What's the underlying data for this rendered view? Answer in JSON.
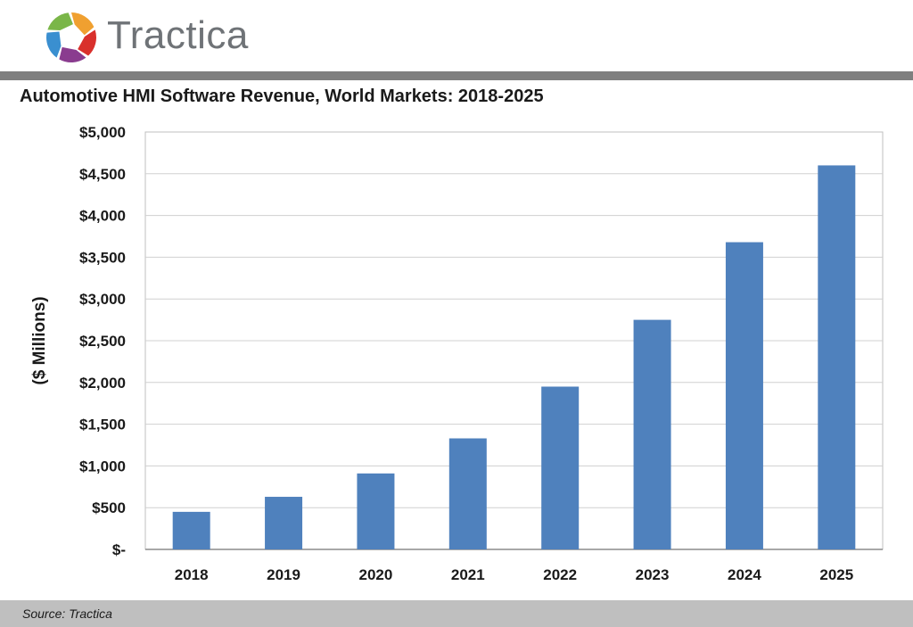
{
  "brand": {
    "name": "Tractica",
    "logo_colors": [
      "#f0a030",
      "#d9302c",
      "#8a3c8f",
      "#3a8fd0",
      "#7ab648"
    ]
  },
  "footer": {
    "source": "Source: Tractica"
  },
  "chart_data": {
    "type": "bar",
    "title": "Automotive HMI Software Revenue, World Markets: 2018-2025",
    "ylabel": "($ Millions)",
    "xlabel": "",
    "categories": [
      "2018",
      "2019",
      "2020",
      "2021",
      "2022",
      "2023",
      "2024",
      "2025"
    ],
    "values": [
      450,
      630,
      910,
      1330,
      1950,
      2750,
      3680,
      4600
    ],
    "ylim": [
      0,
      5000
    ],
    "yticks": [
      0,
      500,
      1000,
      1500,
      2000,
      2500,
      3000,
      3500,
      4000,
      4500,
      5000
    ],
    "ytick_labels": [
      "$-",
      "$500",
      "$1,000",
      "$1,500",
      "$2,000",
      "$2,500",
      "$3,000",
      "$3,500",
      "$4,000",
      "$4,500",
      "$5,000"
    ],
    "grid": true,
    "bar_color": "#4f81bd"
  }
}
